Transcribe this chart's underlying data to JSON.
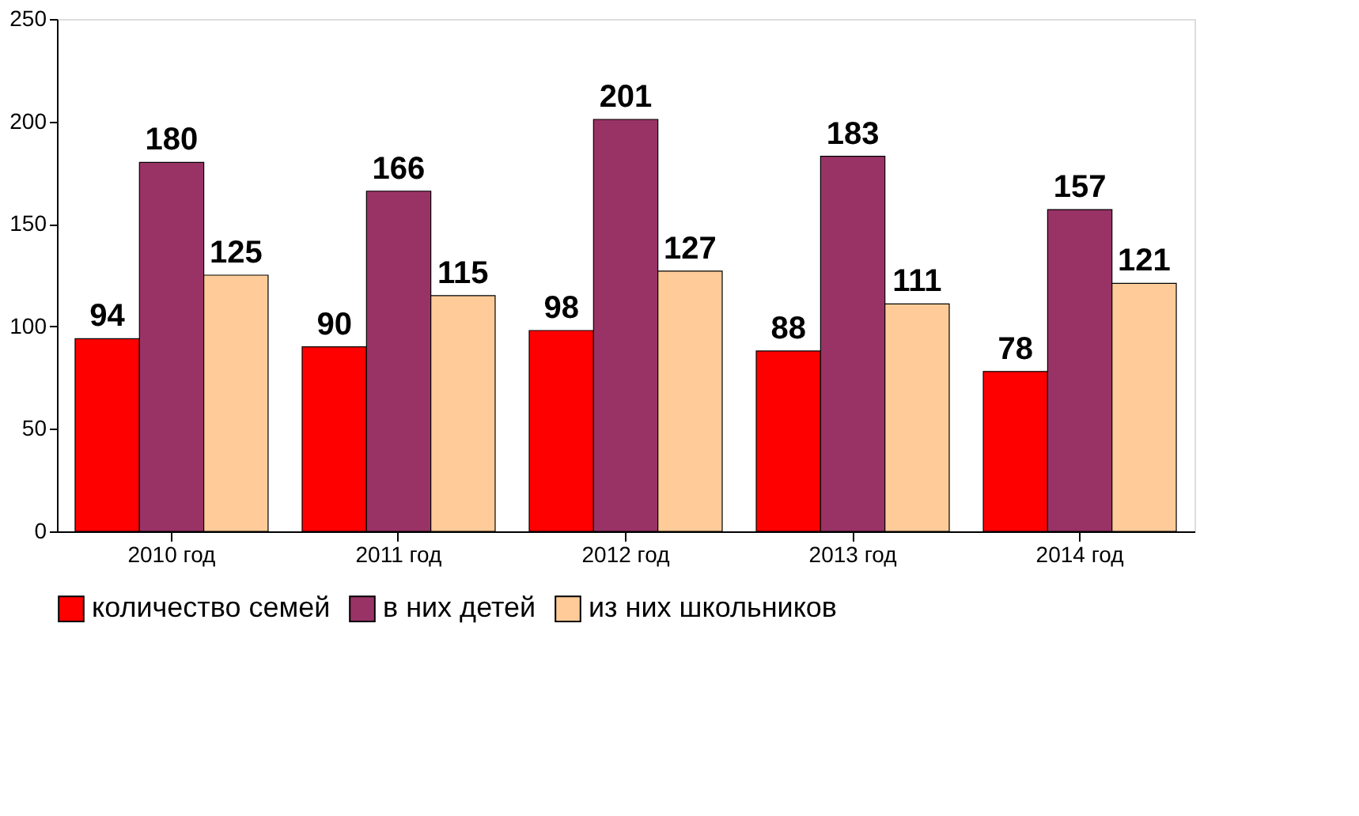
{
  "chart_data": {
    "type": "bar",
    "categories": [
      "2010 год",
      "2011 год",
      "2012 год",
      "2013 год",
      "2014 год"
    ],
    "series": [
      {
        "name": "количество семей",
        "color": "#ff0000",
        "values": [
          94,
          90,
          98,
          88,
          78
        ]
      },
      {
        "name": "в них детей",
        "color": "#993366",
        "values": [
          180,
          166,
          201,
          183,
          157
        ]
      },
      {
        "name": "из них школьников",
        "color": "#ffcc99",
        "values": [
          125,
          115,
          127,
          111,
          121
        ]
      }
    ],
    "ylim": [
      0,
      250
    ],
    "yticks": [
      0,
      50,
      100,
      150,
      200,
      250
    ],
    "grid": false,
    "legend": "bottom",
    "data_labels": true
  }
}
